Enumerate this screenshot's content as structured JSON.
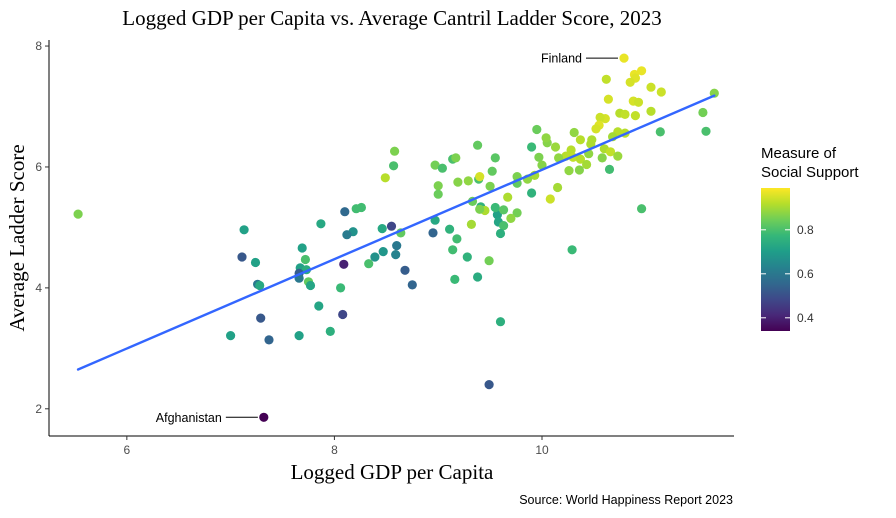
{
  "chart_data": {
    "type": "scatter",
    "title": "Logged GDP per Capita vs. Average Cantril Ladder Score, 2023",
    "xlabel": "Logged GDP per Capita",
    "ylabel": "Average Ladder Score",
    "caption": "Source: World Happiness Report 2023",
    "xlim": [
      5.25,
      11.85
    ],
    "ylim": [
      1.55,
      8.1
    ],
    "xticks": [
      6,
      8,
      10
    ],
    "yticks": [
      2,
      4,
      6,
      8
    ],
    "grid": false,
    "trend_line": {
      "x": [
        5.53,
        11.66
      ],
      "y": [
        2.65,
        7.18
      ],
      "color": "#3366ff"
    },
    "color_scale": {
      "name": "viridis",
      "title": [
        "Measure of",
        "Social Support"
      ],
      "range": [
        0.34,
        0.99
      ],
      "ticks": [
        0.4,
        0.6,
        0.8
      ],
      "stops": [
        "#440154",
        "#482878",
        "#3e4989",
        "#31688e",
        "#26828e",
        "#1f9e89",
        "#35b779",
        "#6ece58",
        "#b5de2b",
        "#fde725"
      ]
    },
    "legend_position": "right",
    "annotations": [
      {
        "label": "Finland",
        "x": 10.79,
        "y": 7.8,
        "side": "left"
      },
      {
        "label": "Afghanistan",
        "x": 7.32,
        "y": 1.86,
        "side": "left"
      }
    ],
    "points": [
      [
        10.79,
        7.8,
        0.97
      ],
      [
        10.96,
        7.59,
        0.97
      ],
      [
        10.89,
        7.53,
        0.97
      ],
      [
        10.9,
        7.47,
        0.96
      ],
      [
        10.85,
        7.4,
        0.95
      ],
      [
        11.05,
        7.32,
        0.94
      ],
      [
        11.66,
        7.22,
        0.87
      ],
      [
        11.15,
        7.24,
        0.94
      ],
      [
        10.88,
        7.09,
        0.95
      ],
      [
        10.62,
        7.45,
        0.93
      ],
      [
        10.64,
        7.12,
        0.95
      ],
      [
        11.05,
        6.92,
        0.92
      ],
      [
        10.75,
        6.89,
        0.92
      ],
      [
        10.93,
        7.07,
        0.94
      ],
      [
        10.8,
        6.87,
        0.93
      ],
      [
        10.9,
        6.85,
        0.93
      ],
      [
        10.61,
        6.8,
        0.95
      ],
      [
        10.56,
        6.82,
        0.94
      ],
      [
        10.55,
        6.69,
        0.96
      ],
      [
        10.73,
        6.58,
        0.92
      ],
      [
        10.52,
        6.63,
        0.95
      ],
      [
        10.68,
        6.5,
        0.9
      ],
      [
        10.6,
        6.3,
        0.91
      ],
      [
        10.66,
        6.25,
        0.93
      ],
      [
        10.8,
        6.56,
        0.92
      ],
      [
        11.55,
        6.9,
        0.85
      ],
      [
        11.58,
        6.59,
        0.8
      ],
      [
        11.14,
        6.58,
        0.8
      ],
      [
        10.31,
        6.57,
        0.88
      ],
      [
        10.37,
        6.45,
        0.92
      ],
      [
        10.48,
        6.45,
        0.91
      ],
      [
        10.47,
        6.38,
        0.91
      ],
      [
        10.28,
        6.28,
        0.92
      ],
      [
        10.3,
        6.16,
        0.93
      ],
      [
        10.37,
        6.13,
        0.92
      ],
      [
        10.43,
        6.04,
        0.9
      ],
      [
        10.58,
        6.15,
        0.87
      ],
      [
        10.73,
        6.18,
        0.89
      ],
      [
        10.65,
        5.96,
        0.79
      ],
      [
        10.36,
        5.95,
        0.87
      ],
      [
        10.45,
        6.22,
        0.88
      ],
      [
        10.05,
        6.4,
        0.87
      ],
      [
        9.95,
        6.62,
        0.84
      ],
      [
        10.04,
        6.48,
        0.88
      ],
      [
        10.13,
        6.33,
        0.89
      ],
      [
        10.23,
        6.18,
        0.92
      ],
      [
        9.9,
        6.33,
        0.78
      ],
      [
        9.97,
        6.16,
        0.86
      ],
      [
        10.0,
        6.03,
        0.87
      ],
      [
        10.16,
        6.15,
        0.88
      ],
      [
        10.26,
        5.94,
        0.88
      ],
      [
        9.93,
        5.86,
        0.9
      ],
      [
        9.76,
        5.84,
        0.86
      ],
      [
        9.86,
        5.8,
        0.88
      ],
      [
        9.55,
        6.15,
        0.82
      ],
      [
        9.52,
        5.93,
        0.83
      ],
      [
        9.9,
        5.57,
        0.76
      ],
      [
        9.76,
        5.73,
        0.83
      ],
      [
        10.15,
        5.66,
        0.9
      ],
      [
        10.08,
        5.47,
        0.94
      ],
      [
        9.67,
        5.5,
        0.91
      ],
      [
        9.5,
        5.68,
        0.86
      ],
      [
        9.39,
        5.8,
        0.8
      ],
      [
        9.29,
        5.77,
        0.88
      ],
      [
        9.4,
        5.84,
        0.95
      ],
      [
        9.38,
        6.36,
        0.83
      ],
      [
        9.14,
        6.13,
        0.8
      ],
      [
        9.17,
        6.15,
        0.86
      ],
      [
        8.97,
        6.03,
        0.85
      ],
      [
        9.04,
        5.98,
        0.8
      ],
      [
        9.0,
        5.69,
        0.86
      ],
      [
        9.0,
        5.55,
        0.84
      ],
      [
        9.19,
        5.75,
        0.87
      ],
      [
        9.33,
        5.43,
        0.84
      ],
      [
        9.41,
        5.34,
        0.76
      ],
      [
        9.45,
        5.28,
        0.91
      ],
      [
        9.57,
        5.21,
        0.71
      ],
      [
        9.55,
        5.33,
        0.78
      ],
      [
        9.63,
        5.29,
        0.82
      ],
      [
        9.76,
        5.24,
        0.85
      ],
      [
        9.7,
        5.15,
        0.88
      ],
      [
        9.58,
        5.09,
        0.72
      ],
      [
        9.63,
        5.03,
        0.8
      ],
      [
        9.6,
        4.9,
        0.75
      ],
      [
        9.32,
        5.05,
        0.9
      ],
      [
        9.4,
        5.3,
        0.86
      ],
      [
        8.97,
        5.12,
        0.73
      ],
      [
        8.95,
        4.91,
        0.55
      ],
      [
        9.11,
        4.97,
        0.76
      ],
      [
        9.18,
        4.81,
        0.79
      ],
      [
        9.14,
        4.63,
        0.79
      ],
      [
        9.28,
        4.51,
        0.76
      ],
      [
        9.49,
        4.45,
        0.85
      ],
      [
        9.16,
        4.14,
        0.78
      ],
      [
        9.38,
        4.18,
        0.74
      ],
      [
        9.6,
        3.44,
        0.75
      ],
      [
        9.49,
        2.4,
        0.52
      ],
      [
        10.29,
        4.63,
        0.78
      ],
      [
        10.96,
        5.31,
        0.8
      ],
      [
        8.58,
        6.26,
        0.86
      ],
      [
        8.49,
        5.82,
        0.92
      ],
      [
        8.26,
        5.33,
        0.79
      ],
      [
        8.21,
        5.31,
        0.79
      ],
      [
        8.1,
        5.26,
        0.56
      ],
      [
        8.18,
        4.93,
        0.67
      ],
      [
        8.57,
        6.02,
        0.8
      ],
      [
        8.55,
        5.02,
        0.48
      ],
      [
        8.46,
        4.98,
        0.73
      ],
      [
        8.6,
        4.7,
        0.6
      ],
      [
        8.47,
        4.6,
        0.68
      ],
      [
        8.59,
        4.55,
        0.63
      ],
      [
        8.39,
        4.51,
        0.67
      ],
      [
        8.33,
        4.4,
        0.8
      ],
      [
        8.68,
        4.29,
        0.53
      ],
      [
        8.75,
        4.05,
        0.55
      ],
      [
        8.64,
        4.91,
        0.83
      ],
      [
        7.87,
        5.06,
        0.73
      ],
      [
        7.69,
        4.66,
        0.71
      ],
      [
        7.67,
        4.33,
        0.71
      ],
      [
        7.73,
        4.3,
        0.74
      ],
      [
        7.75,
        4.1,
        0.83
      ],
      [
        7.66,
        4.24,
        0.53
      ],
      [
        7.66,
        4.16,
        0.6
      ],
      [
        7.77,
        4.04,
        0.72
      ],
      [
        7.72,
        4.47,
        0.8
      ],
      [
        8.12,
        4.88,
        0.61
      ],
      [
        8.09,
        4.39,
        0.4
      ],
      [
        8.06,
        4.0,
        0.78
      ],
      [
        7.85,
        3.7,
        0.72
      ],
      [
        8.08,
        3.56,
        0.48
      ],
      [
        7.96,
        3.28,
        0.75
      ],
      [
        7.66,
        3.21,
        0.71
      ],
      [
        7.37,
        3.14,
        0.55
      ],
      [
        7.29,
        3.5,
        0.52
      ],
      [
        7.24,
        4.42,
        0.71
      ],
      [
        7.26,
        4.06,
        0.6
      ],
      [
        7.28,
        4.04,
        0.73
      ],
      [
        7.11,
        4.51,
        0.52
      ],
      [
        7.13,
        4.96,
        0.71
      ],
      [
        7.0,
        3.21,
        0.71
      ],
      [
        5.53,
        5.22,
        0.86
      ],
      [
        7.32,
        1.86,
        0.34
      ]
    ]
  }
}
